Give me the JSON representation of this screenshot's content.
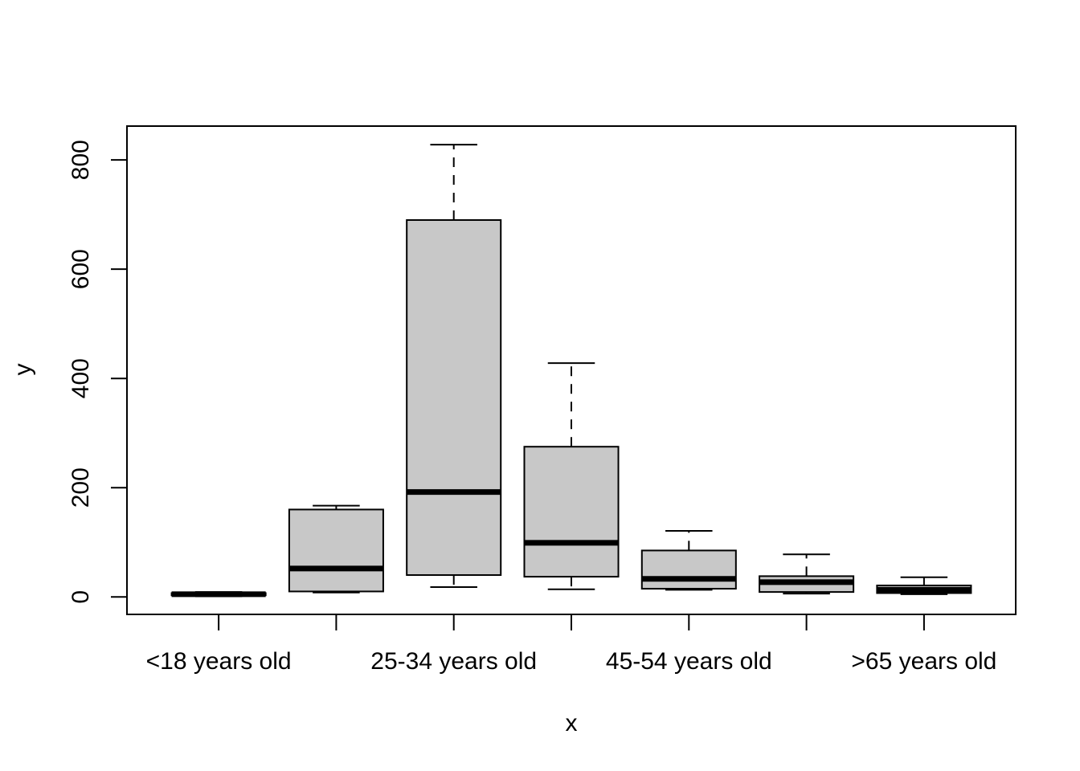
{
  "chart_data": {
    "type": "boxplot",
    "xlabel": "x",
    "ylabel": "y",
    "ylim": [
      -32,
      862
    ],
    "yticks": [
      0,
      200,
      400,
      600,
      800
    ],
    "grid": false,
    "legend": "none",
    "box_fill": "#c8c8c8",
    "categories": [
      "<18 years old",
      "",
      "25-34 years old",
      "",
      "45-54 years old",
      "",
      ">65 years old"
    ],
    "boxes": [
      {
        "whisker_low": 1,
        "q1": 3,
        "median": 5,
        "q3": 7,
        "whisker_high": 9
      },
      {
        "whisker_low": 8,
        "q1": 10,
        "median": 52,
        "q3": 160,
        "whisker_high": 167
      },
      {
        "whisker_low": 18,
        "q1": 40,
        "median": 192,
        "q3": 690,
        "whisker_high": 828
      },
      {
        "whisker_low": 14,
        "q1": 37,
        "median": 99,
        "q3": 275,
        "whisker_high": 428
      },
      {
        "whisker_low": 13,
        "q1": 15,
        "median": 33,
        "q3": 85,
        "whisker_high": 121
      },
      {
        "whisker_low": 6,
        "q1": 9,
        "median": 27,
        "q3": 38,
        "whisker_high": 78
      },
      {
        "whisker_low": 5,
        "q1": 7,
        "median": 13,
        "q3": 21,
        "whisker_high": 36
      }
    ]
  }
}
